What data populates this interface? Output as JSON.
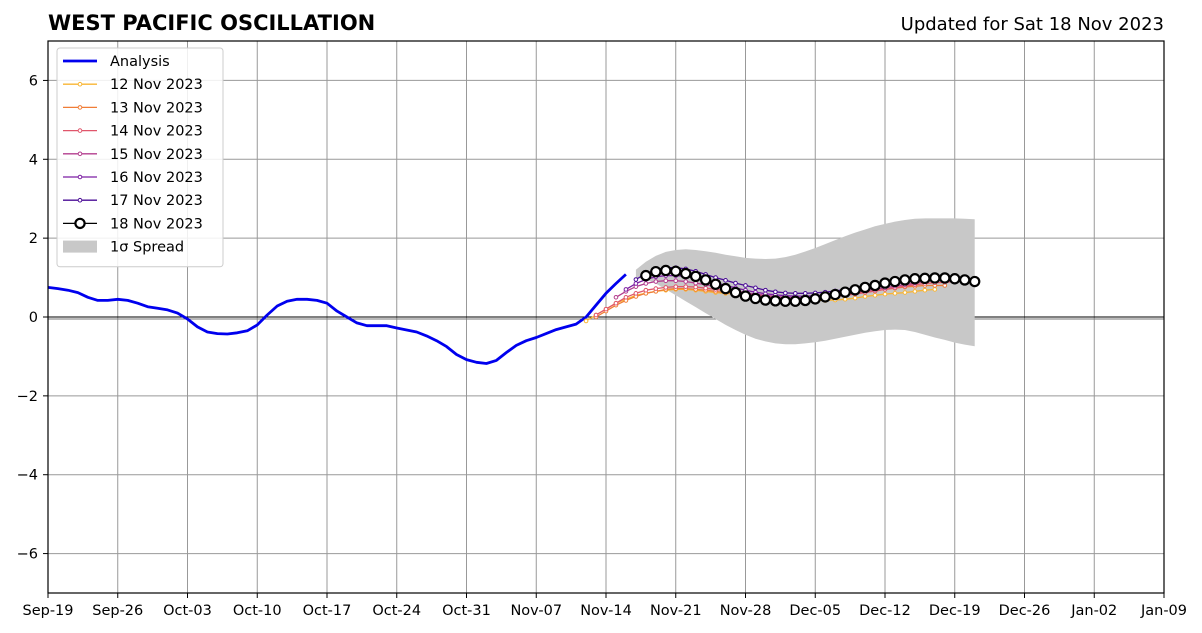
{
  "chart_data": {
    "type": "line",
    "title": "WEST PACIFIC OSCILLATION",
    "subtitle": "Updated for Sat 18 Nov 2023",
    "xlabel": "",
    "ylabel": "",
    "x_range": [
      "2023-09-19",
      "2024-01-09"
    ],
    "ylim": [
      -7,
      7
    ],
    "x_ticks": [
      "Sep-19",
      "Sep-26",
      "Oct-03",
      "Oct-10",
      "Oct-17",
      "Oct-24",
      "Oct-31",
      "Nov-07",
      "Nov-14",
      "Nov-21",
      "Nov-28",
      "Dec-05",
      "Dec-12",
      "Dec-19",
      "Dec-26",
      "Jan-02",
      "Jan-09"
    ],
    "y_ticks": [
      -6,
      -4,
      -2,
      0,
      2,
      4,
      6
    ],
    "grid": true,
    "legend_position": "top-left",
    "zero_line": 0,
    "series": [
      {
        "name": "Analysis",
        "color": "#0000ee",
        "style": "thick",
        "x_start": "2023-09-19",
        "values": [
          0.75,
          0.72,
          0.68,
          0.62,
          0.5,
          0.42,
          0.42,
          0.45,
          0.42,
          0.35,
          0.26,
          0.22,
          0.18,
          0.1,
          -0.05,
          -0.25,
          -0.38,
          -0.42,
          -0.43,
          -0.4,
          -0.35,
          -0.2,
          0.05,
          0.28,
          0.4,
          0.45,
          0.45,
          0.42,
          0.35,
          0.15,
          0.0,
          -0.15,
          -0.22,
          -0.22,
          -0.22,
          -0.28,
          -0.33,
          -0.38,
          -0.48,
          -0.6,
          -0.75,
          -0.95,
          -1.08,
          -1.15,
          -1.18,
          -1.1,
          -0.9,
          -0.72,
          -0.6,
          -0.52,
          -0.42,
          -0.32,
          -0.25,
          -0.18,
          0.0,
          0.3,
          0.6,
          0.85,
          1.08
        ]
      },
      {
        "name": "12 Nov 2023",
        "color": "#f8b533",
        "style": "small",
        "x_start": "2023-11-12",
        "values": [
          -0.1,
          0.05,
          0.2,
          0.35,
          0.45,
          0.55,
          0.6,
          0.65,
          0.68,
          0.7,
          0.7,
          0.68,
          0.65,
          0.62,
          0.6,
          0.58,
          0.55,
          0.52,
          0.5,
          0.48,
          0.45,
          0.43,
          0.42,
          0.42,
          0.42,
          0.43,
          0.45,
          0.48,
          0.52,
          0.55,
          0.58,
          0.6,
          0.62,
          0.65,
          0.68,
          0.7
        ]
      },
      {
        "name": "13 Nov 2023",
        "color": "#f07d37",
        "style": "small",
        "x_start": "2023-11-13",
        "values": [
          0.0,
          0.15,
          0.3,
          0.42,
          0.52,
          0.6,
          0.65,
          0.7,
          0.72,
          0.72,
          0.7,
          0.68,
          0.65,
          0.62,
          0.6,
          0.57,
          0.55,
          0.52,
          0.5,
          0.48,
          0.47,
          0.47,
          0.48,
          0.5,
          0.53,
          0.56,
          0.6,
          0.63,
          0.66,
          0.7,
          0.73,
          0.76,
          0.78,
          0.8,
          0.8,
          0.8
        ]
      },
      {
        "name": "14 Nov 2023",
        "color": "#e0566b",
        "style": "small",
        "x_start": "2023-11-13",
        "values": [
          0.05,
          0.2,
          0.35,
          0.5,
          0.6,
          0.68,
          0.72,
          0.75,
          0.77,
          0.77,
          0.76,
          0.73,
          0.7,
          0.67,
          0.63,
          0.6,
          0.57,
          0.54,
          0.5,
          0.48,
          0.47,
          0.47,
          0.48,
          0.5,
          0.52,
          0.55,
          0.58,
          0.62,
          0.66,
          0.7,
          0.74,
          0.78,
          0.82,
          0.85,
          0.87,
          0.88,
          0.9
        ]
      },
      {
        "name": "15 Nov 2023",
        "color": "#b33d8e",
        "style": "small",
        "x_start": "2023-11-15",
        "values": [
          0.5,
          0.65,
          0.77,
          0.85,
          0.9,
          0.92,
          0.92,
          0.9,
          0.86,
          0.82,
          0.77,
          0.72,
          0.67,
          0.62,
          0.58,
          0.55,
          0.52,
          0.5,
          0.49,
          0.49,
          0.5,
          0.52,
          0.55,
          0.58,
          0.62,
          0.66,
          0.7,
          0.74,
          0.78,
          0.82,
          0.86,
          0.9,
          0.93,
          0.95,
          0.96
        ]
      },
      {
        "name": "16 Nov 2023",
        "color": "#7c1fa3",
        "style": "small",
        "x_start": "2023-11-16",
        "values": [
          0.7,
          0.85,
          0.95,
          1.02,
          1.05,
          1.05,
          1.03,
          0.98,
          0.93,
          0.87,
          0.8,
          0.74,
          0.68,
          0.63,
          0.59,
          0.56,
          0.54,
          0.53,
          0.53,
          0.54,
          0.56,
          0.59,
          0.63,
          0.67,
          0.72,
          0.76,
          0.8,
          0.84,
          0.88,
          0.92,
          0.95,
          0.97,
          0.98,
          0.98,
          0.97
        ]
      },
      {
        "name": "17 Nov 2023",
        "color": "#4a0c96",
        "style": "small",
        "x_start": "2023-11-17",
        "values": [
          0.95,
          1.1,
          1.2,
          1.25,
          1.25,
          1.22,
          1.16,
          1.08,
          1.0,
          0.93,
          0.86,
          0.8,
          0.74,
          0.68,
          0.64,
          0.61,
          0.6,
          0.6,
          0.61,
          0.63,
          0.66,
          0.7,
          0.74,
          0.78,
          0.83,
          0.87,
          0.91,
          0.94,
          0.97,
          0.99,
          1.0,
          1.0,
          0.98,
          0.95
        ]
      },
      {
        "name": "18 Nov 2023",
        "color": "#000000",
        "style": "big",
        "x_start": "2023-11-18",
        "values": [
          1.05,
          1.15,
          1.18,
          1.16,
          1.1,
          1.03,
          0.94,
          0.83,
          0.72,
          0.62,
          0.53,
          0.47,
          0.43,
          0.41,
          0.4,
          0.4,
          0.42,
          0.46,
          0.51,
          0.57,
          0.63,
          0.69,
          0.75,
          0.8,
          0.86,
          0.9,
          0.94,
          0.97,
          0.98,
          0.99,
          0.99,
          0.97,
          0.94,
          0.9
        ]
      },
      {
        "name": "1σ Spread",
        "color": "#c8c8c8",
        "style": "band",
        "x_start": "2023-11-17",
        "upper": [
          1.2,
          1.4,
          1.55,
          1.65,
          1.7,
          1.72,
          1.7,
          1.67,
          1.63,
          1.58,
          1.54,
          1.5,
          1.48,
          1.47,
          1.48,
          1.52,
          1.58,
          1.66,
          1.75,
          1.85,
          1.95,
          2.05,
          2.14,
          2.22,
          2.3,
          2.36,
          2.42,
          2.46,
          2.49,
          2.5,
          2.5,
          2.5,
          2.5,
          2.49,
          2.48
        ],
        "lower": [
          1.0,
          0.95,
          0.85,
          0.7,
          0.55,
          0.4,
          0.25,
          0.1,
          -0.05,
          -0.2,
          -0.33,
          -0.45,
          -0.55,
          -0.62,
          -0.67,
          -0.69,
          -0.69,
          -0.67,
          -0.64,
          -0.6,
          -0.55,
          -0.5,
          -0.45,
          -0.4,
          -0.36,
          -0.33,
          -0.32,
          -0.33,
          -0.38,
          -0.45,
          -0.52,
          -0.58,
          -0.65,
          -0.7,
          -0.74
        ]
      }
    ]
  }
}
